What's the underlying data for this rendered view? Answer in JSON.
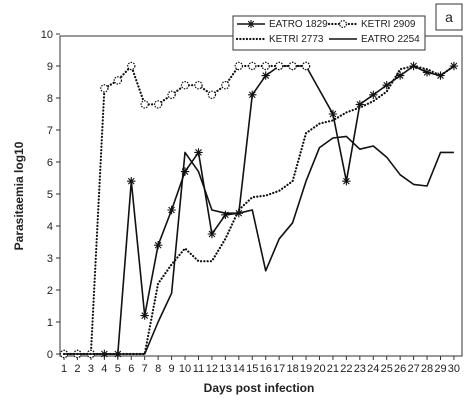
{
  "chart_data": {
    "type": "line",
    "panel_label": "a",
    "xlabel": "Days post infection",
    "ylabel": "Parasitaemia log10",
    "xlim": [
      1,
      30
    ],
    "ylim": [
      0,
      10
    ],
    "x_ticks": [
      1,
      2,
      3,
      4,
      5,
      6,
      7,
      8,
      9,
      10,
      11,
      12,
      13,
      14,
      15,
      16,
      17,
      18,
      19,
      20,
      21,
      22,
      23,
      24,
      25,
      26,
      27,
      28,
      29,
      30
    ],
    "y_ticks": [
      0,
      1,
      2,
      3,
      4,
      5,
      6,
      7,
      8,
      9,
      10
    ],
    "grid": false,
    "legend_position": "top-right",
    "series": [
      {
        "name": "EATRO 1829",
        "style": "solid-star",
        "x": [
          1,
          2,
          3,
          4,
          5,
          6,
          7,
          8,
          9,
          10,
          11,
          12,
          13,
          14,
          15,
          16,
          17,
          18,
          19,
          21,
          22,
          23,
          24,
          25,
          26,
          27,
          28,
          29,
          30
        ],
        "values": [
          0,
          0,
          0,
          0,
          0,
          5.4,
          1.2,
          3.4,
          4.5,
          5.7,
          6.3,
          3.75,
          4.35,
          4.4,
          8.1,
          8.7,
          9.0,
          9.0,
          9.0,
          7.5,
          5.4,
          7.8,
          8.1,
          8.4,
          8.7,
          9.0,
          8.8,
          8.7,
          9.0
        ]
      },
      {
        "name": "KETRI 2909",
        "style": "dotted-circle",
        "x": [
          1,
          2,
          3,
          4,
          5,
          6,
          7,
          8,
          9,
          10,
          11,
          12,
          13,
          14,
          15,
          16,
          17,
          18,
          19
        ],
        "values": [
          0,
          0,
          0,
          8.3,
          8.55,
          9.0,
          7.8,
          7.8,
          8.1,
          8.4,
          8.4,
          8.1,
          8.4,
          9.0,
          9.0,
          9.0,
          9.0,
          9.0,
          9.0
        ]
      },
      {
        "name": "KETRI 2773",
        "style": "dotted",
        "x": [
          1,
          2,
          3,
          4,
          5,
          6,
          7,
          8,
          9,
          10,
          11,
          12,
          13,
          14,
          15,
          16,
          17,
          18,
          19,
          20,
          21,
          22,
          23,
          24,
          25,
          26,
          27,
          28,
          29,
          30
        ],
        "values": [
          0,
          0,
          0,
          0,
          0,
          0,
          0,
          2.2,
          2.8,
          3.3,
          2.9,
          2.9,
          3.6,
          4.5,
          4.9,
          4.95,
          5.1,
          5.4,
          6.9,
          7.2,
          7.3,
          7.55,
          7.7,
          7.9,
          8.2,
          8.9,
          9.0,
          8.9,
          8.7,
          9.0
        ]
      },
      {
        "name": "EATRO 2254",
        "style": "solid",
        "x": [
          1,
          2,
          3,
          4,
          5,
          6,
          7,
          8,
          9,
          10,
          11,
          12,
          13,
          14,
          15,
          16,
          17,
          18,
          19,
          20,
          21,
          22,
          23,
          24,
          25,
          26,
          27,
          28,
          29,
          30
        ],
        "values": [
          0,
          0,
          0,
          0,
          0,
          0,
          0,
          1.0,
          1.9,
          6.3,
          5.7,
          4.5,
          4.4,
          4.4,
          4.5,
          2.6,
          3.6,
          4.1,
          5.4,
          6.45,
          6.75,
          6.8,
          6.4,
          6.5,
          6.15,
          5.6,
          5.3,
          5.25,
          6.3,
          6.3
        ]
      }
    ]
  }
}
